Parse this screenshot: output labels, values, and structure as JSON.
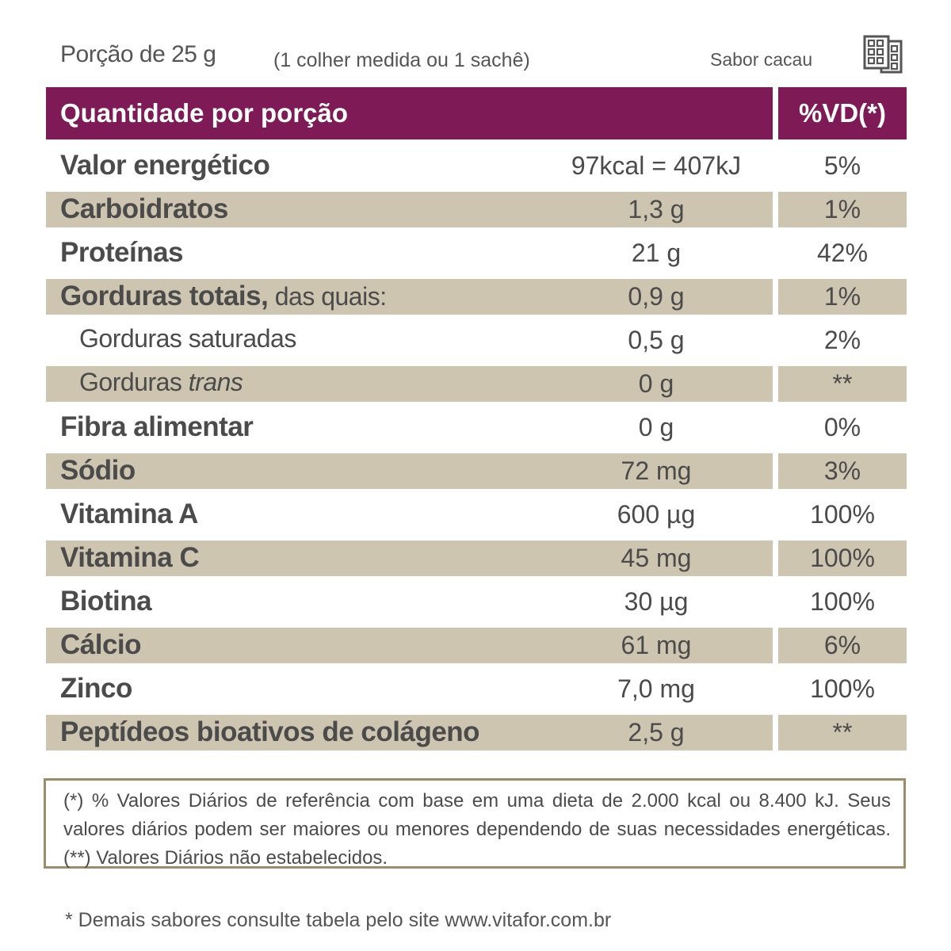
{
  "header": {
    "serving": "Porção de 25 g",
    "serving_note": "(1 colher medida ou 1 sachê)",
    "flavor": "Sabor cacau",
    "flavor_icon": "chocolate-bar-icon"
  },
  "table": {
    "col_quantity_header": "Quantidade por porção",
    "col_vd_header": "%VD(*)",
    "rows": [
      {
        "name": "Valor energético",
        "amount": "97kcal = 407kJ",
        "vd": "5%"
      },
      {
        "name": "Carboidratos",
        "amount": "1,3 g",
        "vd": "1%"
      },
      {
        "name": "Proteínas",
        "amount": "21 g",
        "vd": "42%"
      },
      {
        "name": "Gorduras totais,",
        "name_suffix": " das quais:",
        "amount": "0,9 g",
        "vd": "1%"
      },
      {
        "name": "Gorduras saturadas",
        "amount": "0,5 g",
        "vd": "2%"
      },
      {
        "name": "Gorduras ",
        "name_italic": "trans",
        "amount": "0 g",
        "vd": "**"
      },
      {
        "name": "Fibra alimentar",
        "amount": "0 g",
        "vd": "0%"
      },
      {
        "name": "Sódio",
        "amount": "72 mg",
        "vd": "3%"
      },
      {
        "name": "Vitamina A",
        "amount": "600 µg",
        "vd": "100%"
      },
      {
        "name": "Vitamina C",
        "amount": "45 mg",
        "vd": "100%"
      },
      {
        "name": "Biotina",
        "amount": "30 µg",
        "vd": "100%"
      },
      {
        "name": "Cálcio",
        "amount": "61 mg",
        "vd": "6%"
      },
      {
        "name": "Zinco",
        "amount": "7,0 mg",
        "vd": "100%"
      },
      {
        "name": "Peptídeos bioativos de colágeno",
        "amount": "2,5 g",
        "vd": "**"
      }
    ]
  },
  "footnote": "(*) % Valores Diários de referência com base em uma dieta de 2.000 kcal ou 8.400 kJ. Seus valores diários podem ser maiores ou menores dependendo de suas necessidades energéticas. (**) Valores Diários não estabelecidos.",
  "site_note": "* Demais sabores consulte tabela pelo site www.vitafor.com.br",
  "colors": {
    "header_bg": "#7e1a56",
    "shaded_row": "#cdc5b0",
    "footnote_border": "#9b8d6b",
    "text": "#4b4b4b"
  }
}
